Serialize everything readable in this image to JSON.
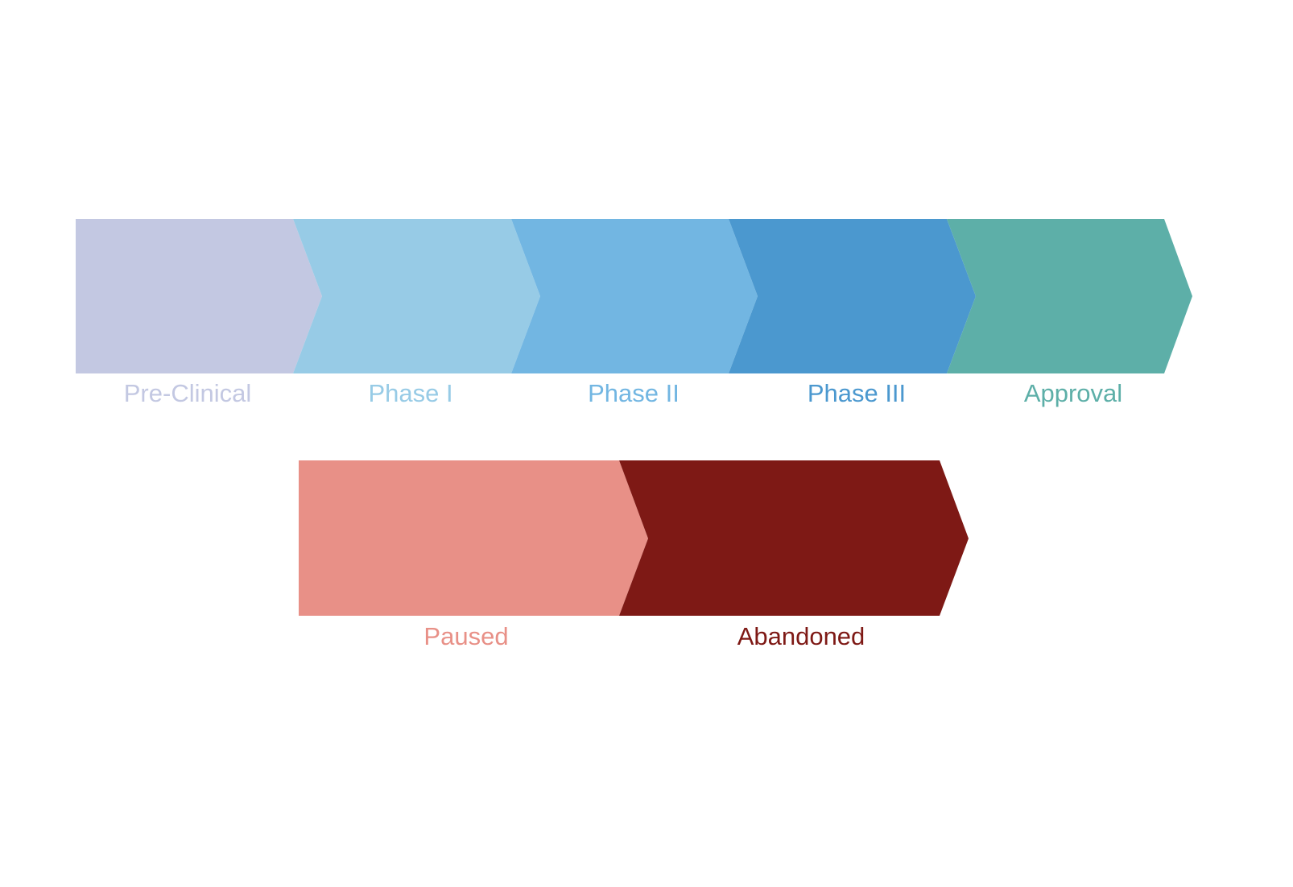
{
  "pipeline": {
    "stages": [
      {
        "label": "Pre-Clinical",
        "color": "#c3c8e2"
      },
      {
        "label": "Phase I",
        "color": "#97cbe6"
      },
      {
        "label": "Phase II",
        "color": "#72b6e2"
      },
      {
        "label": "Phase III",
        "color": "#4b98cf"
      },
      {
        "label": "Approval",
        "color": "#5dafa8"
      }
    ]
  },
  "status": {
    "stages": [
      {
        "label": "Paused",
        "color": "#e89087"
      },
      {
        "label": "Abandoned",
        "color": "#7e1915"
      }
    ]
  }
}
